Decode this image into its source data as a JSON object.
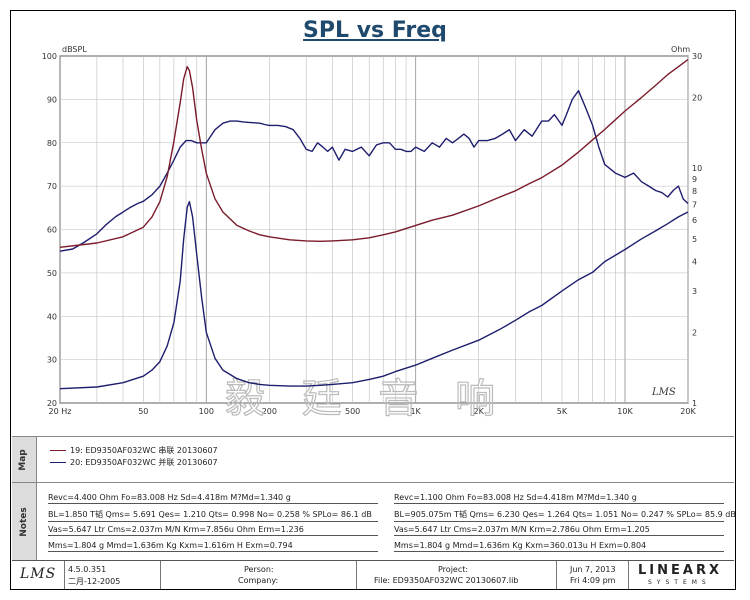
{
  "title": "SPL vs Freq",
  "watermark": "毅 廷 音 响",
  "chart_data": {
    "type": "line",
    "title": "SPL vs Freq",
    "x_scale": "log",
    "xlim": [
      20,
      20000
    ],
    "x_ticks": [
      {
        "v": 20,
        "label": "20  Hz"
      },
      {
        "v": 50,
        "label": "50"
      },
      {
        "v": 100,
        "label": "100"
      },
      {
        "v": 200,
        "label": "200"
      },
      {
        "v": 500,
        "label": "500"
      },
      {
        "v": 1000,
        "label": "1K"
      },
      {
        "v": 2000,
        "label": "2K"
      },
      {
        "v": 5000,
        "label": "5K"
      },
      {
        "v": 10000,
        "label": "10K"
      },
      {
        "v": 20000,
        "label": "20K"
      }
    ],
    "left_axis": {
      "unit": "dBSPL",
      "range": [
        20,
        100
      ],
      "ticks": [
        20,
        30,
        40,
        50,
        60,
        70,
        80,
        90,
        100
      ]
    },
    "right_axis": {
      "unit": "Ohm",
      "scale": "log",
      "range": [
        1,
        30
      ],
      "ticks": [
        {
          "v": 1,
          "label": "1"
        },
        {
          "v": 2,
          "label": "2"
        },
        {
          "v": 3,
          "label": "3"
        },
        {
          "v": 4,
          "label": "4"
        },
        {
          "v": 5,
          "label": "5"
        },
        {
          "v": 6,
          "label": "6"
        },
        {
          "v": 7,
          "label": "7"
        },
        {
          "v": 8,
          "label": "8"
        },
        {
          "v": 9,
          "label": "9"
        },
        {
          "v": 10,
          "label": "10"
        },
        {
          "v": 20,
          "label": "20"
        },
        {
          "v": 30,
          "label": "30"
        }
      ]
    },
    "series": [
      {
        "name": "SPL",
        "axis": "left",
        "color": "#1e1e6e",
        "x": [
          20,
          23,
          26,
          30,
          33,
          37,
          40,
          43,
          47,
          50,
          55,
          60,
          65,
          70,
          75,
          80,
          85,
          90,
          100,
          110,
          120,
          130,
          140,
          150,
          160,
          170,
          180,
          190,
          200,
          220,
          240,
          260,
          280,
          300,
          320,
          340,
          360,
          380,
          400,
          430,
          460,
          500,
          550,
          600,
          650,
          700,
          750,
          800,
          850,
          900,
          950,
          1000,
          1100,
          1200,
          1300,
          1400,
          1500,
          1600,
          1700,
          1800,
          1900,
          2000,
          2200,
          2400,
          2600,
          2800,
          3000,
          3300,
          3600,
          4000,
          4300,
          4600,
          5000,
          5300,
          5600,
          6000,
          6500,
          7000,
          7500,
          8000,
          9000,
          10000,
          11000,
          12000,
          13000,
          14000,
          15000,
          16000,
          17000,
          18000,
          19000,
          20000
        ],
        "values": [
          55,
          55.5,
          57,
          59,
          61,
          63,
          64,
          65,
          66,
          66.5,
          68,
          70,
          73,
          76,
          79,
          80.5,
          80.5,
          80,
          80,
          83,
          84.5,
          85,
          85,
          84.8,
          84.7,
          84.6,
          84.5,
          84.2,
          84,
          84,
          83.7,
          83,
          81,
          78.5,
          78,
          80,
          79,
          78,
          79,
          76,
          78.5,
          78,
          79,
          77,
          79.5,
          80,
          80,
          78.5,
          78.5,
          78,
          78,
          79,
          78,
          80,
          79,
          81,
          80,
          81,
          82,
          81,
          79,
          80.5,
          80.5,
          81,
          82,
          83,
          80.5,
          83,
          81.5,
          85,
          85,
          86.5,
          84,
          87,
          90,
          92,
          88,
          84,
          79,
          75,
          73,
          72,
          73,
          71,
          70,
          69,
          68.5,
          67.5,
          69,
          70,
          67,
          66
        ]
      },
      {
        "name": "Impedance (series)",
        "axis": "right",
        "color": "#7a1a2a",
        "x": [
          20,
          30,
          40,
          50,
          55,
          60,
          65,
          70,
          75,
          78,
          81,
          83,
          86,
          90,
          95,
          100,
          110,
          120,
          140,
          160,
          180,
          200,
          250,
          300,
          350,
          400,
          500,
          600,
          700,
          800,
          1000,
          1200,
          1500,
          2000,
          2500,
          3000,
          3500,
          4000,
          5000,
          6000,
          7000,
          8000,
          10000,
          12000,
          14000,
          16000,
          18000,
          20000
        ],
        "values": [
          4.6,
          4.8,
          5.1,
          5.6,
          6.2,
          7.2,
          9.2,
          13,
          19,
          24,
          27,
          26,
          22,
          16,
          12,
          9.5,
          7.4,
          6.5,
          5.7,
          5.4,
          5.2,
          5.1,
          4.95,
          4.9,
          4.88,
          4.9,
          4.95,
          5.05,
          5.2,
          5.35,
          5.7,
          6.0,
          6.3,
          6.9,
          7.5,
          8.0,
          8.6,
          9.1,
          10.3,
          11.7,
          13.2,
          14.6,
          17.5,
          20,
          22.5,
          25,
          27,
          29
        ]
      },
      {
        "name": "Impedance (parallel)",
        "axis": "right",
        "color": "#1e1e6e",
        "x": [
          20,
          30,
          40,
          50,
          55,
          60,
          65,
          70,
          75,
          78,
          81,
          83,
          86,
          90,
          95,
          100,
          110,
          120,
          140,
          160,
          180,
          200,
          250,
          300,
          350,
          400,
          500,
          600,
          700,
          800,
          1000,
          1200,
          1500,
          2000,
          2500,
          3000,
          3500,
          4000,
          5000,
          6000,
          7000,
          8000,
          10000,
          12000,
          14000,
          16000,
          18000,
          20000
        ],
        "values": [
          1.15,
          1.17,
          1.22,
          1.3,
          1.38,
          1.5,
          1.75,
          2.2,
          3.3,
          5,
          6.8,
          7.2,
          6.2,
          4.3,
          2.8,
          2.0,
          1.55,
          1.38,
          1.27,
          1.22,
          1.2,
          1.19,
          1.18,
          1.18,
          1.19,
          1.2,
          1.22,
          1.26,
          1.3,
          1.36,
          1.45,
          1.55,
          1.68,
          1.85,
          2.05,
          2.25,
          2.45,
          2.6,
          3.0,
          3.35,
          3.6,
          4.0,
          4.5,
          5.0,
          5.4,
          5.8,
          6.2,
          6.5
        ]
      }
    ],
    "annotation": "LMS"
  },
  "map": {
    "label": "Map",
    "items": [
      {
        "text": "19: ED9350AF032WC 串联 20130607",
        "color": "#7a1a2a"
      },
      {
        "text": "20: ED9350AF032WC 并联 20130607",
        "color": "#1e1e6e"
      }
    ]
  },
  "notes": {
    "label": "Notes",
    "left": [
      "Revc=4.400 Ohm  Fo=83.008 Hz  Sd=4.418m M?Md=1.340 g",
      "BL=1.850 T韬  Qms= 5.691  Qes= 1.210  Qts= 0.998  No= 0.258 %  SPLo= 86.1 dB",
      "Vas=5.647 Ltr  Cms=2.037m M/N  Krm=7.856u Ohm  Erm=1.236",
      "Mms=1.804 g  Mmd=1.636m Kg  Kxm=1.616m H  Exm=0.794"
    ],
    "right": [
      "Revc=1.100 Ohm  Fo=83.008 Hz  Sd=4.418m M?Md=1.340 g",
      "BL=905.075m T韬  Qms= 6.230  Qes= 1.264  Qts= 1.051  No= 0.247 %  SPLo= 85.9 dB",
      "Vas=5.647 Ltr  Cms=2.037m M/N  Krm=2.786u Ohm  Erm=1.205",
      "Mms=1.804 g  Mmd=1.636m Kg  Kxm=360.013u H  Exm=0.804"
    ]
  },
  "footer": {
    "logo": "LMS",
    "version": "4.5.0.351",
    "date_built": "二月-12-2005",
    "person_label": "Person:",
    "company_label": "Company:",
    "project_label": "Project:",
    "file_label": "File: ED9350AF032WC  20130607.lib",
    "date": "Jun  7, 2013",
    "time": "Fri  4:09 pm",
    "brand": "LINEARX",
    "brand_sub": "SYSTEMS"
  }
}
